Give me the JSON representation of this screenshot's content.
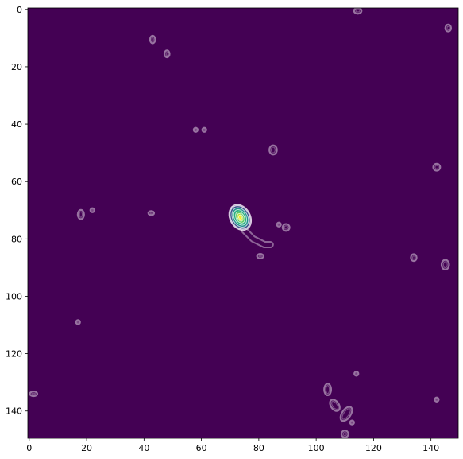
{
  "chart_data": {
    "type": "heatmap",
    "title": "",
    "xlabel": "",
    "ylabel": "",
    "xlim": [
      -0.5,
      149.5
    ],
    "ylim": [
      149.5,
      -0.5
    ],
    "y_axis_inverted": true,
    "xticks": [
      0,
      20,
      40,
      60,
      80,
      100,
      120,
      140
    ],
    "yticks": [
      0,
      20,
      40,
      60,
      80,
      100,
      120,
      140
    ],
    "background_color": "#440154",
    "colormap": "viridis",
    "grid": false,
    "contours": {
      "style": "filled image with translucent white contour outlines",
      "main_peak": {
        "center": [
          73.5,
          72.5
        ],
        "levels": [
          {
            "rx": 3.6,
            "ry": 4.8,
            "rotate": -30,
            "color": "#bfa9cf"
          },
          {
            "rx": 3.2,
            "ry": 4.3,
            "rotate": -30,
            "color": "#3b528b"
          },
          {
            "rx": 2.6,
            "ry": 3.6,
            "rotate": -30,
            "color": "#21918c"
          },
          {
            "rx": 2.0,
            "ry": 2.9,
            "rotate": -30,
            "color": "#2ab07f"
          },
          {
            "rx": 1.4,
            "ry": 2.1,
            "rotate": -30,
            "color": "#5ec962"
          },
          {
            "rx": 0.9,
            "ry": 1.4,
            "rotate": -25,
            "color": "#b5de2b"
          },
          {
            "rx": 0.5,
            "ry": 0.8,
            "rotate": -20,
            "color": "#fde725"
          }
        ],
        "tail_points": [
          [
            75,
            77
          ],
          [
            78,
            80
          ],
          [
            80,
            81
          ],
          [
            82,
            82
          ],
          [
            84,
            82
          ]
        ]
      },
      "blobs": [
        {
          "x": 114.5,
          "y": 0.5,
          "rx": 1.3,
          "ry": 1.0
        },
        {
          "x": 146,
          "y": 6.5,
          "rx": 1.0,
          "ry": 1.2
        },
        {
          "x": 43,
          "y": 10.5,
          "rx": 0.9,
          "ry": 1.3
        },
        {
          "x": 48,
          "y": 15.5,
          "rx": 0.9,
          "ry": 1.2
        },
        {
          "x": 58,
          "y": 42,
          "rx": 0.7,
          "ry": 0.7
        },
        {
          "x": 61,
          "y": 42,
          "rx": 0.7,
          "ry": 0.7
        },
        {
          "x": 85,
          "y": 49,
          "rx": 1.3,
          "ry": 1.6
        },
        {
          "x": 142,
          "y": 55,
          "rx": 1.2,
          "ry": 1.2
        },
        {
          "x": 18,
          "y": 71.5,
          "rx": 1.1,
          "ry": 1.6
        },
        {
          "x": 22,
          "y": 70,
          "rx": 0.7,
          "ry": 0.7
        },
        {
          "x": 42.5,
          "y": 71,
          "rx": 1.0,
          "ry": 0.7
        },
        {
          "x": 87,
          "y": 75,
          "rx": 0.7,
          "ry": 0.7
        },
        {
          "x": 89.5,
          "y": 76,
          "rx": 1.2,
          "ry": 1.2
        },
        {
          "x": 80.5,
          "y": 86,
          "rx": 1.1,
          "ry": 0.8
        },
        {
          "x": 134,
          "y": 86.5,
          "rx": 1.0,
          "ry": 1.2
        },
        {
          "x": 145,
          "y": 89,
          "rx": 1.3,
          "ry": 1.7
        },
        {
          "x": 17,
          "y": 109,
          "rx": 0.7,
          "ry": 0.7
        },
        {
          "x": 114,
          "y": 127,
          "rx": 0.7,
          "ry": 0.7
        },
        {
          "x": 104,
          "y": 132.5,
          "rx": 1.2,
          "ry": 2.0
        },
        {
          "x": 1.5,
          "y": 134,
          "rx": 1.3,
          "ry": 0.8
        },
        {
          "x": 142,
          "y": 136,
          "rx": 0.7,
          "ry": 0.7
        },
        {
          "x": 106.5,
          "y": 138,
          "rx": 1.4,
          "ry": 2.2,
          "rotate": -35
        },
        {
          "x": 110.5,
          "y": 141,
          "rx": 1.5,
          "ry": 2.8,
          "rotate": 35
        },
        {
          "x": 112.5,
          "y": 144,
          "rx": 0.7,
          "ry": 0.7
        },
        {
          "x": 110,
          "y": 148,
          "rx": 1.2,
          "ry": 1.2
        }
      ]
    }
  }
}
